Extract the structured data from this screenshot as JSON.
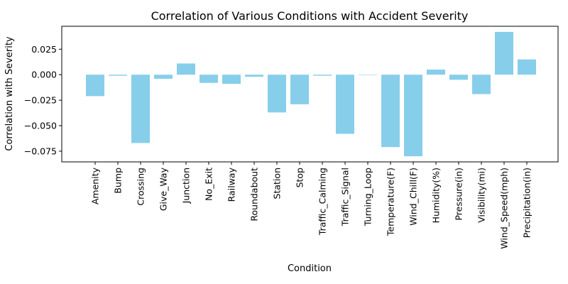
{
  "chart_data": {
    "type": "bar",
    "title": "Correlation of Various Conditions with Accident Severity",
    "xlabel": "Condition",
    "ylabel": "Correlation with Severity",
    "categories": [
      "Amenity",
      "Bump",
      "Crossing",
      "Give_Way",
      "Junction",
      "No_Exit",
      "Railway",
      "Roundabout",
      "Station",
      "Stop",
      "Traffic_Calming",
      "Traffic_Signal",
      "Turning_Loop",
      "Temperature(F)",
      "Wind_Chill(F)",
      "Humidity(%)",
      "Pressure(in)",
      "Visibility(mi)",
      "Wind_Speed(mph)",
      "Precipitation(in)"
    ],
    "values": [
      -0.021,
      -0.001,
      -0.067,
      -0.004,
      0.011,
      -0.008,
      -0.009,
      -0.002,
      -0.037,
      -0.029,
      -0.001,
      -0.058,
      0.0,
      -0.071,
      -0.08,
      0.005,
      -0.005,
      -0.019,
      0.042,
      0.015
    ],
    "ylim": [
      -0.0855,
      0.0475
    ],
    "yticks": [
      0.025,
      0.0,
      -0.025,
      -0.05,
      -0.075
    ],
    "ytick_labels": [
      "0.025",
      "0.000",
      "−0.025",
      "−0.050",
      "−0.075"
    ],
    "bar_color": "#87CEEB",
    "grid": false,
    "legend": "none"
  }
}
